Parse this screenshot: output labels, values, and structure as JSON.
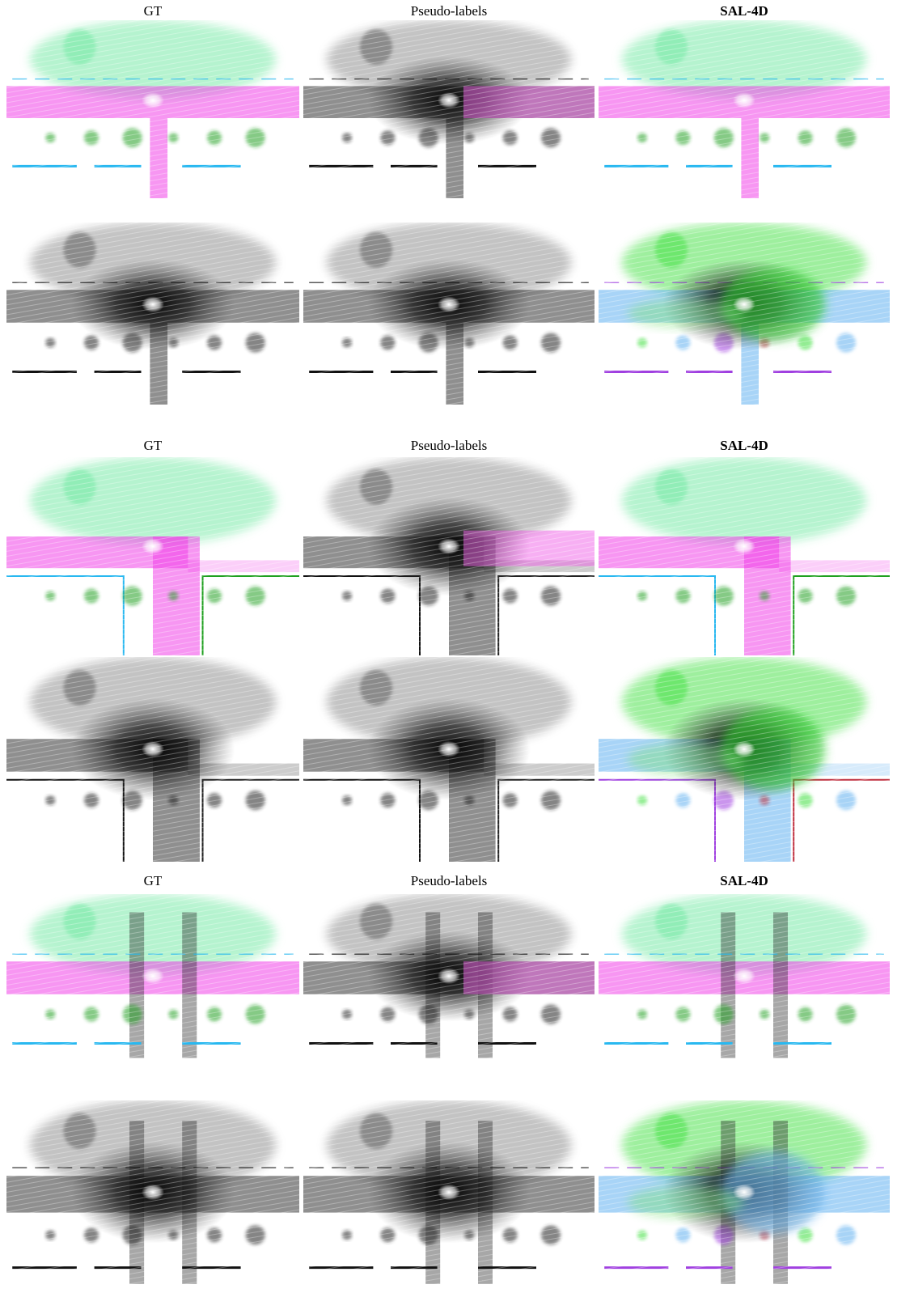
{
  "figure": {
    "groups": [
      {
        "headers": [
          "GT",
          "Pseudo-labels",
          "SAL-4D"
        ]
      },
      {
        "headers": [
          "GT",
          "Pseudo-labels",
          "SAL-4D"
        ]
      },
      {
        "headers": [
          "GT",
          "Pseudo-labels",
          "SAL-4D"
        ]
      }
    ]
  }
}
